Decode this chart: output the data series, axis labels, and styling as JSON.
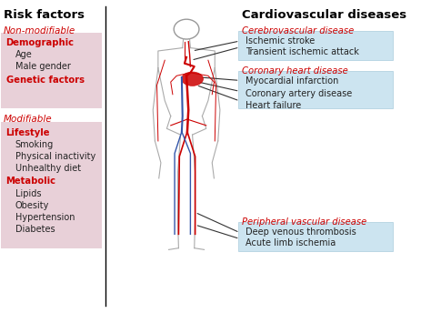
{
  "title_left": "Risk factors",
  "title_right": "Cardiovascular diseases",
  "left_box_color": "#e8d0d8",
  "right_box_color": "#cce4f0",
  "red_color": "#cc0000",
  "black_color": "#000000",
  "dark_gray": "#222222",
  "non_modifiable_label": "Non-modifiable",
  "modifiable_label": "Modifiable",
  "left_sections": [
    {
      "header": "Demographic",
      "header_color": "#cc0000",
      "items": [
        "Age",
        "Male gender"
      ],
      "item_color": "#222222"
    },
    {
      "header": "Genetic factors",
      "header_color": "#cc0000",
      "items": [],
      "item_color": "#222222"
    },
    {
      "header": "Lifestyle",
      "header_color": "#cc0000",
      "items": [
        "Smoking",
        "Physical inactivity",
        "Unhealthy diet"
      ],
      "item_color": "#222222"
    },
    {
      "header": "Metabolic",
      "header_color": "#cc0000",
      "items": [
        "Lipids",
        "Obesity",
        "Hypertension",
        "Diabetes"
      ],
      "item_color": "#222222"
    }
  ],
  "right_sections": [
    {
      "header": "Cerebrovascular disease",
      "header_color": "#cc0000",
      "items": [
        "Ischemic stroke",
        "Transient ischemic attack"
      ],
      "box_color": "#cce4f0"
    },
    {
      "header": "Coronary heart disease",
      "header_color": "#cc0000",
      "items": [
        "Myocardial infarction",
        "Coronary artery disease",
        "Heart failure"
      ],
      "box_color": "#cce4f0"
    },
    {
      "header": "Peripheral vascular disease",
      "header_color": "#cc0000",
      "items": [
        "Deep venous thrombosis",
        "Acute limb ischemia"
      ],
      "box_color": "#cce4f0"
    }
  ],
  "line_color": "#333333",
  "figsize": [
    4.74,
    3.44
  ],
  "dpi": 100
}
